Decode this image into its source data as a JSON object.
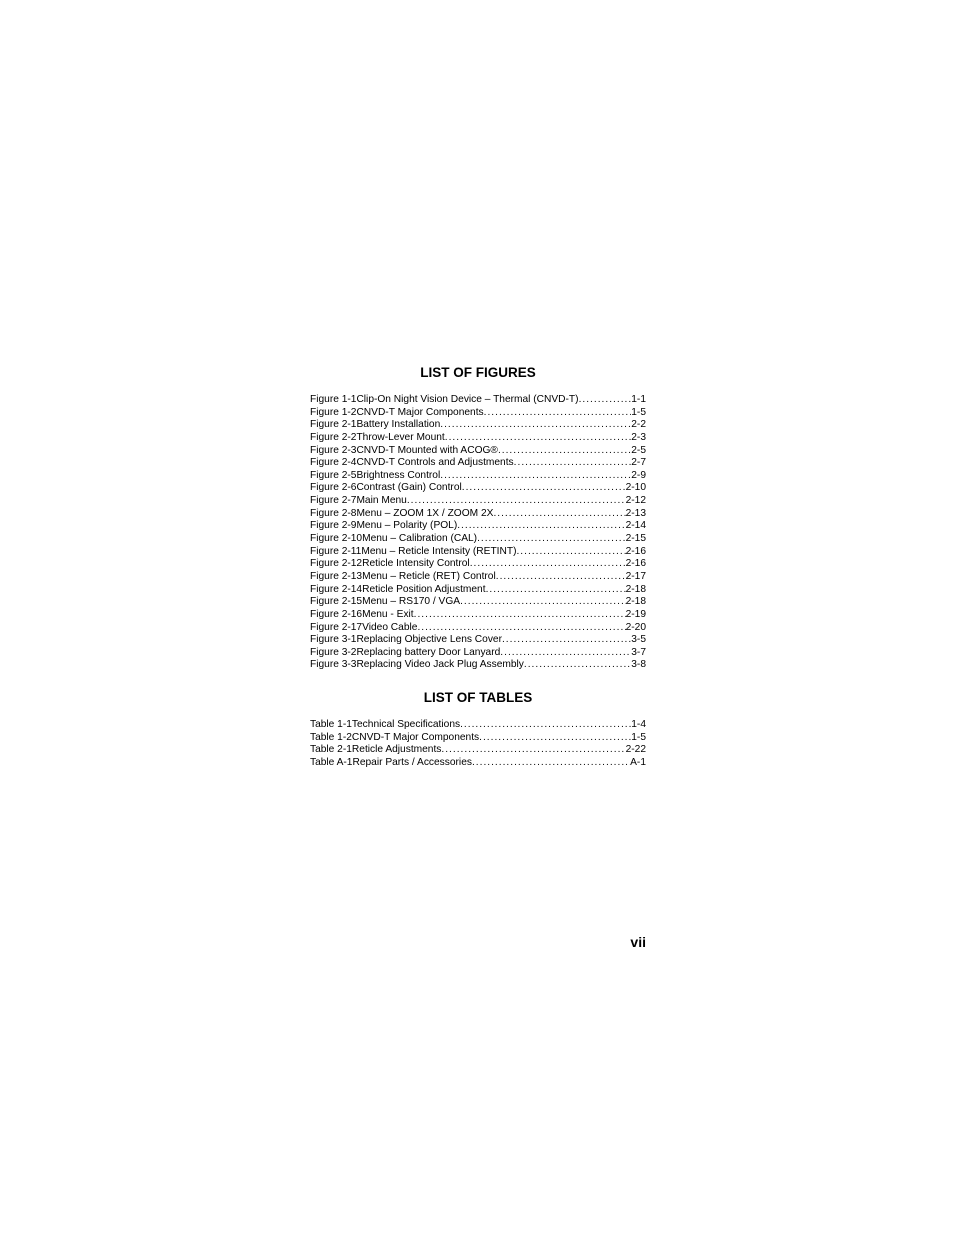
{
  "headings": {
    "figures": "LIST OF FIGURES",
    "tables": "LIST OF TABLES"
  },
  "figures": [
    {
      "label": "Figure 1-1  ",
      "title": "Clip-On Night Vision Device – Thermal (CNVD-T)",
      "page": "1-1"
    },
    {
      "label": "Figure 1-2  ",
      "title": "CNVD-T Major Components",
      "page": "1-5"
    },
    {
      "label": "Figure 2-1  ",
      "title": "Battery Installation",
      "page": "2-2"
    },
    {
      "label": "Figure 2-2  ",
      "title": "Throw-Lever Mount",
      "page": "2-3"
    },
    {
      "label": "Figure 2-3  ",
      "title": "CNVD-T Mounted with ACOG®",
      "page": "2-5"
    },
    {
      "label": "Figure 2-4  ",
      "title": "CNVD-T Controls and Adjustments",
      "page": "2-7"
    },
    {
      "label": "Figure 2-5  ",
      "title": "Brightness Control",
      "page": "2-9"
    },
    {
      "label": "Figure 2-6  ",
      "title": "Contrast (Gain) Control",
      "page": "2-10"
    },
    {
      "label": "Figure 2-7  ",
      "title": "Main Menu",
      "page": "2-12"
    },
    {
      "label": "Figure 2-8  ",
      "title": "Menu – ZOOM 1X / ZOOM 2X",
      "page": "2-13"
    },
    {
      "label": "Figure 2-9  ",
      "title": "Menu – Polarity (POL)",
      "page": "2-14"
    },
    {
      "label": "Figure 2-10  ",
      "title": "Menu – Calibration (CAL)",
      "page": "2-15"
    },
    {
      "label": "Figure 2-11  ",
      "title": "Menu – Reticle Intensity (RETINT)",
      "page": "2-16"
    },
    {
      "label": "Figure 2-12  ",
      "title": "Reticle Intensity Control",
      "page": "2-16"
    },
    {
      "label": "Figure 2-13  ",
      "title": "Menu – Reticle (RET) Control",
      "page": "2-17"
    },
    {
      "label": "Figure 2-14  ",
      "title": "Reticle Position Adjustment",
      "page": "2-18"
    },
    {
      "label": "Figure 2-15  ",
      "title": "Menu – RS170 / VGA",
      "page": "2-18"
    },
    {
      "label": "Figure 2-16  ",
      "title": "Menu - Exit",
      "page": "2-19"
    },
    {
      "label": "Figure 2-17  ",
      "title": "Video Cable",
      "page": "2-20"
    },
    {
      "label": "Figure 3-1  ",
      "title": "Replacing Objective Lens Cover",
      "page": "3-5"
    },
    {
      "label": "Figure 3-2  ",
      "title": "Replacing battery Door Lanyard",
      "page": "3-7"
    },
    {
      "label": "Figure 3-3  ",
      "title": "Replacing Video Jack Plug Assembly",
      "page": "3-8"
    }
  ],
  "tables": [
    {
      "label": "Table 1-1  ",
      "title": "Technical Specifications",
      "page": "1-4"
    },
    {
      "label": "Table 1-2  ",
      "title": "CNVD-T Major Components",
      "page": "1-5"
    },
    {
      "label": "Table 2-1  ",
      "title": "Reticle Adjustments",
      "page": "2-22"
    },
    {
      "label": "Table A-1  ",
      "title": "Repair Parts / Accessories",
      "page": "A-1"
    }
  ],
  "page_number": "vii",
  "colors": {
    "text": "#000000",
    "background": "#ffffff"
  },
  "typography": {
    "heading_fontsize": 13.5,
    "body_fontsize": 10.2,
    "pagenum_fontsize": 14,
    "font_family": "Arial"
  }
}
